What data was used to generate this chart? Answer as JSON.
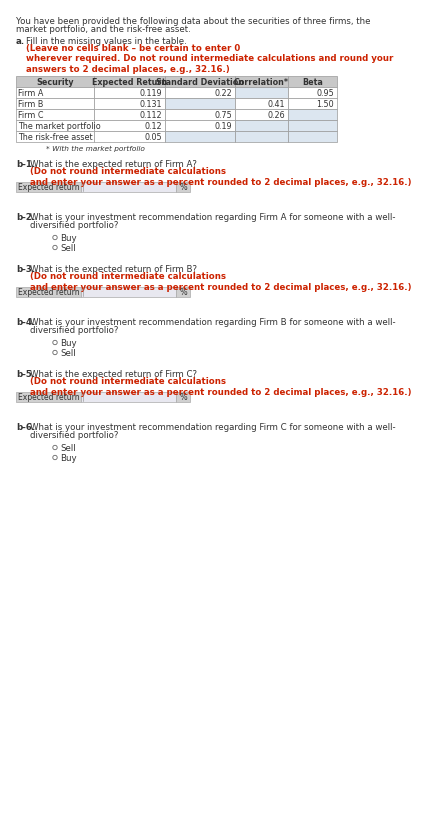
{
  "intro_line1": "You have been provided the following data about the securities of three firms, the",
  "intro_line2": "market portfolio, and the risk-free asset.",
  "part_a_label": "a.",
  "part_a_black": "Fill in the missing values in the table. ",
  "part_a_red": "(Leave no cells blank – be certain to enter 0\nwherever required. Do not round intermediate calculations and round your\nanswers to 2 decimal places, e.g., 32.16.)",
  "table_headers": [
    "Security",
    "Expected Return",
    "Standard Deviation",
    "Correlation*",
    "Beta"
  ],
  "table_rows": [
    [
      "Firm A",
      "0.119",
      "0.22",
      "",
      "0.95"
    ],
    [
      "Firm B",
      "0.131",
      "",
      "0.41",
      "1.50"
    ],
    [
      "Firm C",
      "0.112",
      "0.75",
      "0.26",
      ""
    ],
    [
      "The market portfolio",
      "0.12",
      "0.19",
      "",
      ""
    ],
    [
      "The risk-free asset",
      "0.05",
      "",
      "",
      ""
    ]
  ],
  "footnote": "* With the market portfolio",
  "b1_label": "b-1.",
  "b1_black": "What is the expected return of Firm A? ",
  "b1_red": "(Do not round intermediate calculations\nand enter your answer as a percent rounded to 2 decimal places, e.g., 32.16.)",
  "b1_field_label": "Expected return",
  "b1_field_unit": "%",
  "b2_label": "b-2.",
  "b2_text_line1": "What is your investment recommendation regarding Firm A for someone with a well-",
  "b2_text_line2": "diversified portfolio?",
  "b2_options": [
    "Buy",
    "Sell"
  ],
  "b3_label": "b-3.",
  "b3_black": "What is the expected return of Firm B? ",
  "b3_red": "(Do not round intermediate calculations\nand enter your answer as a percent rounded to 2 decimal places, e.g., 32.16.)",
  "b3_field_label": "Expected return",
  "b3_field_unit": "%",
  "b4_label": "b-4.",
  "b4_text_line1": "What is your investment recommendation regarding Firm B for someone with a well-",
  "b4_text_line2": "diversified portfolio?",
  "b4_options": [
    "Buy",
    "Sell"
  ],
  "b5_label": "b-5.",
  "b5_black": "What is the expected return of Firm C? ",
  "b5_red": "(Do not round intermediate calculations\nand enter your answer as a percent rounded to 2 decimal places, e.g., 32.16.)",
  "b5_field_label": "Expected return",
  "b5_field_unit": "%",
  "b6_label": "b-6.",
  "b6_text_line1": "What is your investment recommendation regarding Firm C for someone with a well-",
  "b6_text_line2": "diversified portfolio?",
  "b6_options": [
    "Sell",
    "Buy"
  ],
  "bg_color": "#ffffff",
  "text_color": "#333333",
  "red_color": "#cc2200",
  "table_header_bg": "#c8c8c8",
  "table_border_color": "#999999",
  "empty_cell_bg": "#dce6f0",
  "filled_cell_bg": "#ffffff",
  "field_label_bg": "#d0d0d0",
  "field_input_bg": "#e8e8f0",
  "field_border": "#aaaaaa"
}
